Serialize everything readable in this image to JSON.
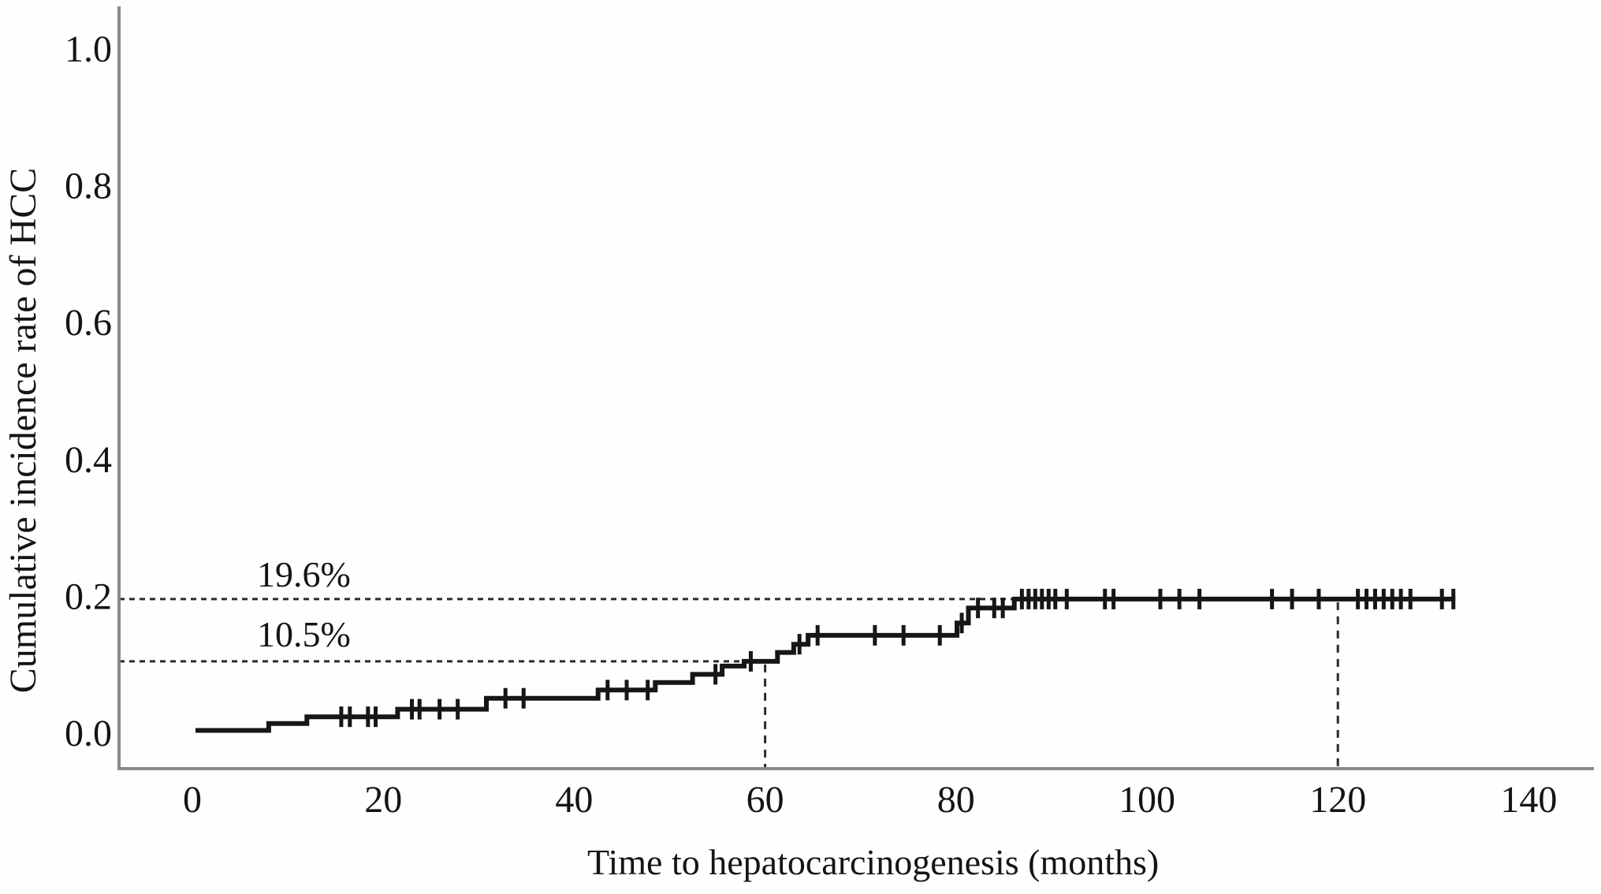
{
  "colors": {
    "curve": "#161616",
    "dashed": "#2b2b2b",
    "axis": "#8a8a8a",
    "text": "#141414",
    "background": "#fefefe"
  },
  "chart_data": {
    "type": "line",
    "subtype": "kaplan-meier-cumulative-incidence-step",
    "title": "",
    "xlabel": "Time to hepatocarcinogenesis (months)",
    "ylabel": "Cumulative incidence rate of HCC",
    "xlim": [
      -7.7,
      147
    ],
    "ylim": [
      -0.052,
      1.062
    ],
    "grid": false,
    "legend": false,
    "x_ticks": [
      {
        "value": 0,
        "label": "0"
      },
      {
        "value": 20,
        "label": "20"
      },
      {
        "value": 40,
        "label": "40"
      },
      {
        "value": 60,
        "label": "60"
      },
      {
        "value": 80,
        "label": "80"
      },
      {
        "value": 100,
        "label": "100"
      },
      {
        "value": 120,
        "label": "120"
      },
      {
        "value": 140,
        "label": "140"
      }
    ],
    "y_ticks": [
      {
        "value": 0.0,
        "label": "0.0"
      },
      {
        "value": 0.2,
        "label": "0.2"
      },
      {
        "value": 0.4,
        "label": "0.4"
      },
      {
        "value": 0.6,
        "label": "0.6"
      },
      {
        "value": 0.8,
        "label": "0.8"
      },
      {
        "value": 1.0,
        "label": "1.0"
      }
    ],
    "series": [
      {
        "name": "Cumulative incidence rate of HCC",
        "color": "#161616",
        "steps": [
          [
            0.33,
            0.004
          ],
          [
            8.0,
            0.014
          ],
          [
            12.0,
            0.024
          ],
          [
            21.5,
            0.035
          ],
          [
            30.8,
            0.051
          ],
          [
            42.5,
            0.063
          ],
          [
            48.5,
            0.074
          ],
          [
            52.4,
            0.086
          ],
          [
            55.5,
            0.098
          ],
          [
            57.8,
            0.105
          ],
          [
            61.3,
            0.118
          ],
          [
            63.0,
            0.13
          ],
          [
            64.5,
            0.143
          ],
          [
            80.1,
            0.161
          ],
          [
            81.3,
            0.183
          ],
          [
            86.1,
            0.196
          ]
        ],
        "end_time": 132.3,
        "final_value": 0.196,
        "censor_times": [
          [
            15.6,
            0.024
          ],
          [
            16.5,
            0.024
          ],
          [
            18.4,
            0.024
          ],
          [
            19.2,
            0.024
          ],
          [
            23.0,
            0.035
          ],
          [
            23.8,
            0.035
          ],
          [
            25.9,
            0.035
          ],
          [
            27.8,
            0.035
          ],
          [
            32.8,
            0.051
          ],
          [
            34.7,
            0.051
          ],
          [
            43.5,
            0.063
          ],
          [
            45.5,
            0.063
          ],
          [
            47.7,
            0.063
          ],
          [
            54.8,
            0.086
          ],
          [
            58.5,
            0.105
          ],
          [
            63.6,
            0.13
          ],
          [
            65.5,
            0.143
          ],
          [
            71.5,
            0.143
          ],
          [
            74.5,
            0.143
          ],
          [
            78.3,
            0.143
          ],
          [
            80.6,
            0.161
          ],
          [
            82.3,
            0.183
          ],
          [
            84.0,
            0.183
          ],
          [
            84.9,
            0.183
          ],
          [
            86.9,
            0.196
          ],
          [
            87.6,
            0.196
          ],
          [
            88.3,
            0.196
          ],
          [
            89.0,
            0.196
          ],
          [
            89.7,
            0.196
          ],
          [
            90.4,
            0.196
          ],
          [
            91.6,
            0.196
          ],
          [
            95.6,
            0.196
          ],
          [
            96.5,
            0.196
          ],
          [
            101.4,
            0.196
          ],
          [
            103.4,
            0.196
          ],
          [
            105.5,
            0.196
          ],
          [
            113.1,
            0.196
          ],
          [
            115.2,
            0.196
          ],
          [
            118.0,
            0.196
          ],
          [
            122.1,
            0.196
          ],
          [
            123.0,
            0.196
          ],
          [
            123.9,
            0.196
          ],
          [
            124.8,
            0.196
          ],
          [
            125.7,
            0.196
          ],
          [
            126.6,
            0.196
          ],
          [
            127.6,
            0.196
          ],
          [
            130.9,
            0.196
          ],
          [
            132.1,
            0.196
          ]
        ]
      }
    ],
    "reference_lines": {
      "horizontal": [
        {
          "value": 0.196,
          "label": "19.6%",
          "to_x": 86.1
        },
        {
          "value": 0.105,
          "label": "10.5%",
          "to_x": 59.6
        }
      ],
      "vertical": [
        {
          "x": 60,
          "from_y": 0.105
        },
        {
          "x": 120,
          "from_y": 0.196
        }
      ]
    },
    "annotations": [
      {
        "text": "19.6%",
        "x": 6.8,
        "y": 0.232
      },
      {
        "text": "10.5%",
        "x": 6.8,
        "y": 0.143
      }
    ]
  }
}
